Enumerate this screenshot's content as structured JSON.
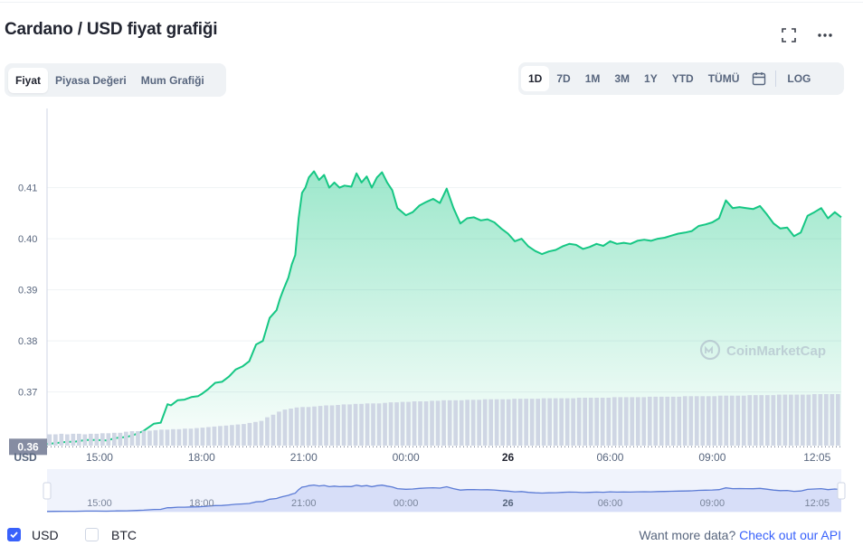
{
  "title": "Cardano / USD fiyat grafiği",
  "icons": {
    "fullscreen": "fullscreen-icon",
    "more": "more-icon",
    "calendar": "calendar-icon",
    "watermark": "coinmarketcap-logo"
  },
  "chart_tabs": [
    "Fiyat",
    "Piyasa Değeri",
    "Mum Grafiği"
  ],
  "active_chart_tab": "Fiyat",
  "ranges": [
    "1D",
    "7D",
    "1M",
    "3M",
    "1Y",
    "YTD",
    "TÜMÜ"
  ],
  "active_range": "1D",
  "log_label": "LOG",
  "watermark": "CoinMarketCap",
  "footer": {
    "usd_label": "USD",
    "btc_label": "BTC",
    "usd_checked": true,
    "btc_checked": false,
    "more_text": "Want more data?",
    "api_link": "Check out our API"
  },
  "colors": {
    "line": "#16c784",
    "accent": "#3861fb",
    "nav_fill": "#d7def8",
    "nav_line": "#5b7bd5",
    "volume": "#cfd6e4"
  },
  "chart_data": {
    "type": "area",
    "currency_label": "USD",
    "current_price_label": "0.36",
    "y_ticks": [
      "0.41",
      "0.40",
      "0.39",
      "0.38",
      "0.37"
    ],
    "ylim": [
      0.3595,
      0.4255
    ],
    "x_ticks": [
      "15:00",
      "18:00",
      "21:00",
      "00:00",
      "26",
      "06:00",
      "09:00",
      "12:05"
    ],
    "x_tick_hours": [
      15,
      18,
      21,
      24,
      27,
      30,
      33,
      36.08
    ],
    "x_range_hours": [
      13.46,
      36.79
    ],
    "grid": true,
    "series": [
      {
        "x": [
          13.46,
          13.7,
          14,
          14.3,
          14.6,
          14.9,
          15.2,
          15.5,
          15.8,
          16.1,
          16.3,
          16.6,
          16.8,
          17.0,
          17.1,
          17.3,
          17.5,
          17.7,
          17.9,
          18.0,
          18.2,
          18.4,
          18.6,
          18.8,
          19.0,
          19.2,
          19.4,
          19.6,
          19.8,
          20.0,
          20.2,
          20.3,
          20.4,
          20.55,
          20.65,
          20.75,
          20.85,
          20.95,
          21.05,
          21.15,
          21.3,
          21.45,
          21.6,
          21.75,
          21.9,
          22.05,
          22.2,
          22.4,
          22.55,
          22.7,
          22.85,
          23.0,
          23.15,
          23.3,
          23.45,
          23.6,
          23.75,
          24.0,
          24.2,
          24.4,
          24.6,
          24.8,
          25.0,
          25.2,
          25.4,
          25.6,
          25.8,
          26.0,
          26.2,
          26.4,
          26.6,
          26.8,
          27.0,
          27.2,
          27.4,
          27.6,
          27.8,
          28.0,
          28.2,
          28.4,
          28.6,
          28.8,
          29.0,
          29.2,
          29.4,
          29.6,
          29.8,
          30.0,
          30.2,
          30.4,
          30.6,
          30.8,
          31.0,
          31.2,
          31.4,
          31.6,
          31.8,
          32.0,
          32.2,
          32.4,
          32.6,
          32.8,
          33.0,
          33.2,
          33.4,
          33.6,
          33.8,
          34.0,
          34.2,
          34.4,
          34.6,
          34.8,
          35.0,
          35.2,
          35.4,
          35.6,
          35.8,
          36.0,
          36.2,
          36.4,
          36.6,
          36.79
        ],
        "y": [
          0.3598,
          0.36,
          0.3602,
          0.3603,
          0.3606,
          0.3606,
          0.3605,
          0.361,
          0.3612,
          0.3618,
          0.3624,
          0.3638,
          0.364,
          0.3676,
          0.3674,
          0.3684,
          0.3685,
          0.369,
          0.3692,
          0.3696,
          0.3706,
          0.3718,
          0.372,
          0.373,
          0.3744,
          0.375,
          0.376,
          0.3793,
          0.38,
          0.3845,
          0.386,
          0.3882,
          0.39,
          0.3924,
          0.395,
          0.3968,
          0.404,
          0.409,
          0.41,
          0.412,
          0.4132,
          0.4115,
          0.4125,
          0.41,
          0.411,
          0.41,
          0.4104,
          0.4102,
          0.4128,
          0.411,
          0.4122,
          0.41,
          0.412,
          0.413,
          0.411,
          0.4095,
          0.406,
          0.4046,
          0.4052,
          0.4065,
          0.4072,
          0.4078,
          0.407,
          0.4098,
          0.406,
          0.403,
          0.404,
          0.4042,
          0.4036,
          0.4038,
          0.4032,
          0.402,
          0.401,
          0.3995,
          0.4,
          0.3985,
          0.3976,
          0.397,
          0.3975,
          0.3978,
          0.3985,
          0.399,
          0.3988,
          0.398,
          0.3984,
          0.399,
          0.3986,
          0.3995,
          0.399,
          0.3992,
          0.399,
          0.3996,
          0.3998,
          0.3996,
          0.4,
          0.4002,
          0.4006,
          0.401,
          0.4012,
          0.4015,
          0.4025,
          0.4028,
          0.4032,
          0.404,
          0.4075,
          0.406,
          0.4062,
          0.406,
          0.4058,
          0.4064,
          0.4048,
          0.403,
          0.402,
          0.4022,
          0.4005,
          0.4012,
          0.4045,
          0.4052,
          0.406,
          0.404,
          0.4052,
          0.4042
        ]
      }
    ],
    "volume": [
      0.22,
      0.22,
      0.23,
      0.22,
      0.23,
      0.23,
      0.22,
      0.23,
      0.23,
      0.24,
      0.24,
      0.25,
      0.25,
      0.27,
      0.28,
      0.28,
      0.29,
      0.29,
      0.3,
      0.31,
      0.31,
      0.32,
      0.32,
      0.33,
      0.33,
      0.34,
      0.35,
      0.36,
      0.37,
      0.38,
      0.39,
      0.4,
      0.41,
      0.42,
      0.44,
      0.46,
      0.48,
      0.55,
      0.6,
      0.66,
      0.7,
      0.72,
      0.74,
      0.75,
      0.75,
      0.76,
      0.77,
      0.78,
      0.78,
      0.79,
      0.8,
      0.8,
      0.81,
      0.81,
      0.82,
      0.82,
      0.82,
      0.83,
      0.84,
      0.84,
      0.85,
      0.85,
      0.86,
      0.86,
      0.86,
      0.87,
      0.87,
      0.88,
      0.88,
      0.88,
      0.88,
      0.89,
      0.89,
      0.89,
      0.9,
      0.9,
      0.9,
      0.9,
      0.9,
      0.91,
      0.91,
      0.91,
      0.91,
      0.91,
      0.92,
      0.92,
      0.92,
      0.92,
      0.92,
      0.92,
      0.93,
      0.93,
      0.93,
      0.93,
      0.93,
      0.93,
      0.94,
      0.94,
      0.94,
      0.94,
      0.94,
      0.94,
      0.95,
      0.95,
      0.95,
      0.95,
      0.95,
      0.95,
      0.96,
      0.96,
      0.96,
      0.96,
      0.96,
      0.96,
      0.97,
      0.97,
      0.97,
      0.97,
      0.97,
      0.98,
      0.98,
      0.98,
      0.98,
      0.98,
      0.99,
      0.99,
      0.99,
      0.99,
      0.99,
      0.99,
      1.0,
      1.0,
      1.0,
      1.0,
      1.0
    ]
  }
}
